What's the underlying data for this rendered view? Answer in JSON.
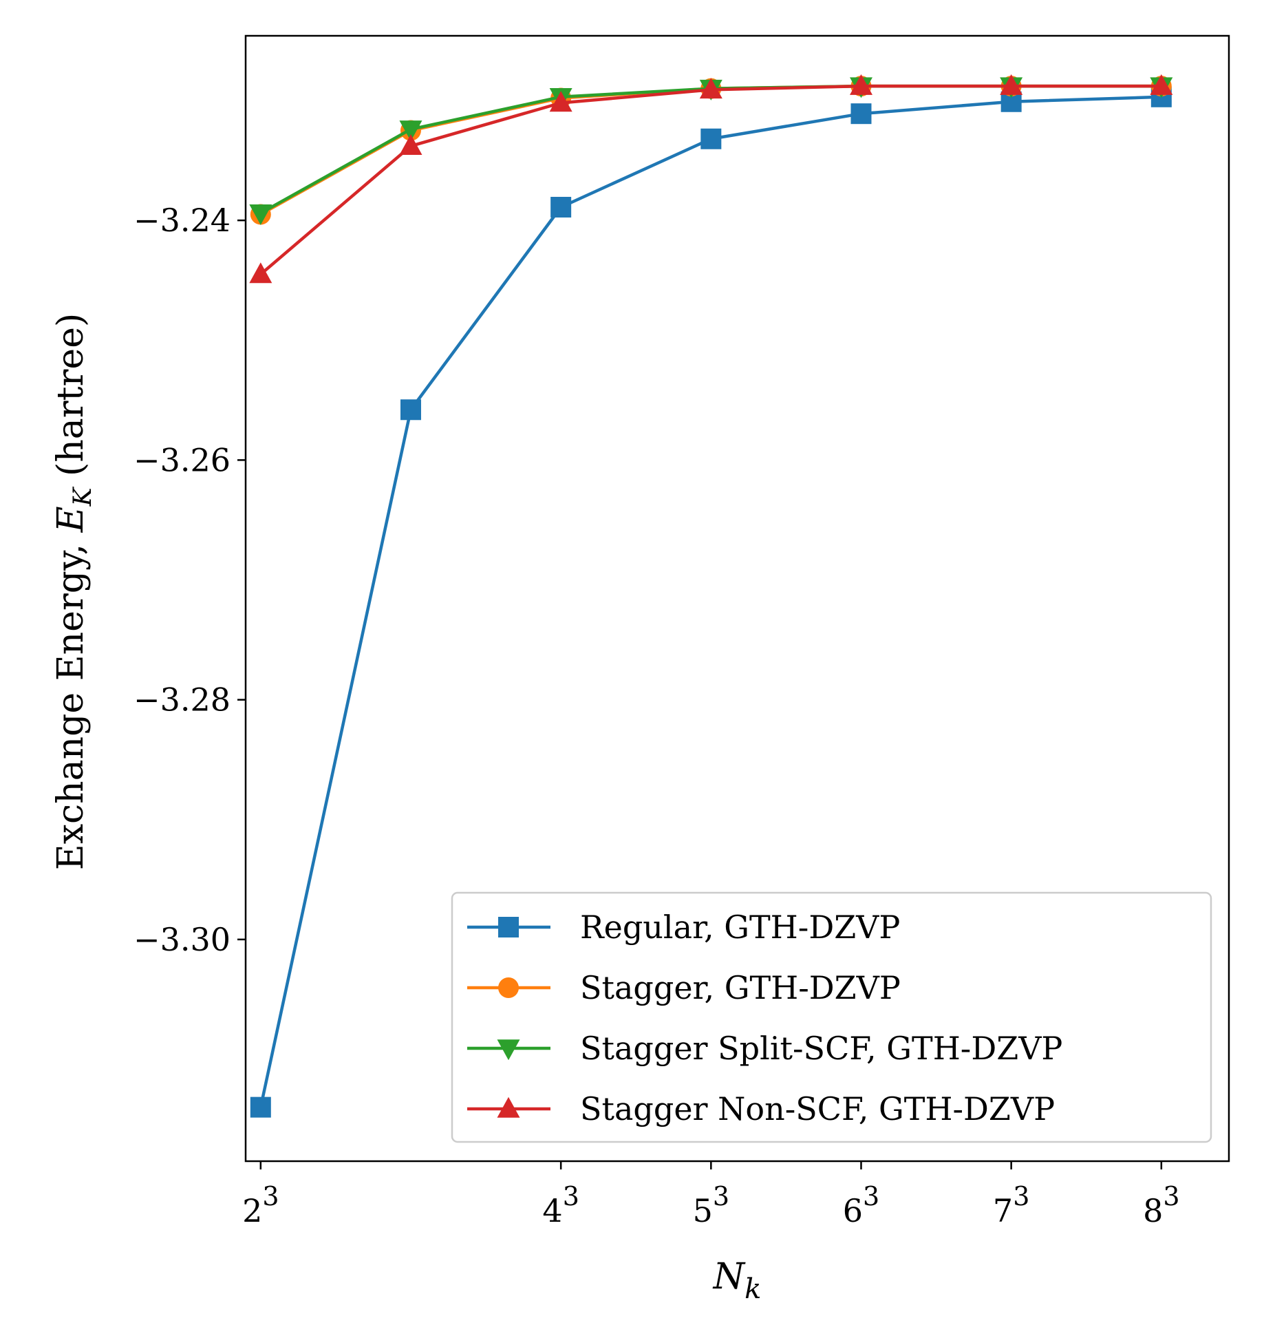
{
  "chart_data": {
    "type": "line",
    "title": "",
    "xlabel": "N",
    "xlabel_sub": "k",
    "ylabel": "Exchange Energy, ",
    "ylabel_sym": "E",
    "ylabel_sub": "K",
    "ylabel_unit": " (hartree)",
    "xlim": [
      1.9,
      8.45
    ],
    "ylim": [
      -3.3185,
      -3.2246
    ],
    "yticks": [
      -3.24,
      -3.26,
      -3.28,
      -3.3
    ],
    "ytick_labels": [
      "−3.24",
      "−3.26",
      "−3.28",
      "−3.30"
    ],
    "xticks": [
      {
        "value": 2,
        "base": "2",
        "exp": "3"
      },
      {
        "value": 4,
        "base": "4",
        "exp": "3"
      },
      {
        "value": 5,
        "base": "5",
        "exp": "3"
      },
      {
        "value": 6,
        "base": "6",
        "exp": "3"
      },
      {
        "value": 7,
        "base": "7",
        "exp": "3"
      },
      {
        "value": 8,
        "base": "8",
        "exp": "3"
      }
    ],
    "x": [
      2,
      3,
      4,
      5,
      6,
      7,
      8
    ],
    "series": [
      {
        "name": "Regular, GTH-DZVP",
        "color": "#1f77b4",
        "marker": "square",
        "values": [
          -3.314,
          -3.2558,
          -3.2389,
          -3.2332,
          -3.2311,
          -3.2301,
          -3.2297
        ]
      },
      {
        "name": "Stagger, GTH-DZVP",
        "color": "#ff7f0e",
        "marker": "circle",
        "values": [
          -3.2395,
          -3.2325,
          -3.2298,
          -3.229,
          -3.2288,
          -3.2288,
          -3.2288
        ]
      },
      {
        "name": "Stagger Split-SCF, GTH-DZVP",
        "color": "#2ca02c",
        "marker": "triangle-down",
        "values": [
          -3.2394,
          -3.2324,
          -3.2297,
          -3.229,
          -3.2288,
          -3.2288,
          -3.2288
        ]
      },
      {
        "name": "Stagger Non-SCF, GTH-DZVP",
        "color": "#d62728",
        "marker": "triangle-up",
        "values": [
          -3.2445,
          -3.2338,
          -3.2302,
          -3.2291,
          -3.2288,
          -3.2288,
          -3.2288
        ]
      }
    ],
    "legend_position": "lower-right",
    "grid": false
  }
}
